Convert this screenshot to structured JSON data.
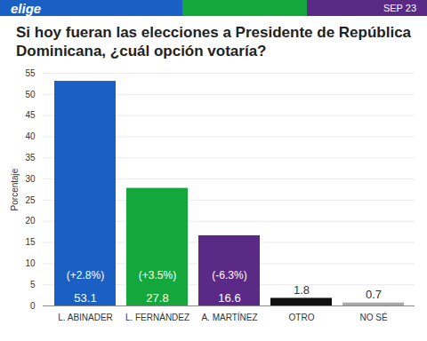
{
  "header": {
    "brand": "elige",
    "date": "SEP 23"
  },
  "chart_data": {
    "type": "bar",
    "title": "Si hoy fueran las elecciones a Presidente de República Dominicana, ¿cuál opción votaría?",
    "y_label": "Porcentaje",
    "categories": [
      "L. ABINADER",
      "L. FERNÁNDEZ",
      "A. MARTÍNEZ",
      "OTRO",
      "NO SÉ"
    ],
    "values": [
      53.1,
      27.8,
      16.6,
      1.8,
      0.7
    ],
    "colors": [
      "#1a5fc4",
      "#14a83c",
      "#5b2a86",
      "#111111",
      "#a9a9a9"
    ],
    "annotations": [
      "(+2.8%)",
      "(+3.5%)",
      "(-6.3%)",
      null,
      null
    ],
    "ylim": [
      0,
      55
    ],
    "yticks": [
      0,
      5,
      10,
      15,
      20,
      25,
      30,
      35,
      40,
      45,
      50,
      55
    ],
    "grid": true,
    "data_labels": true
  }
}
